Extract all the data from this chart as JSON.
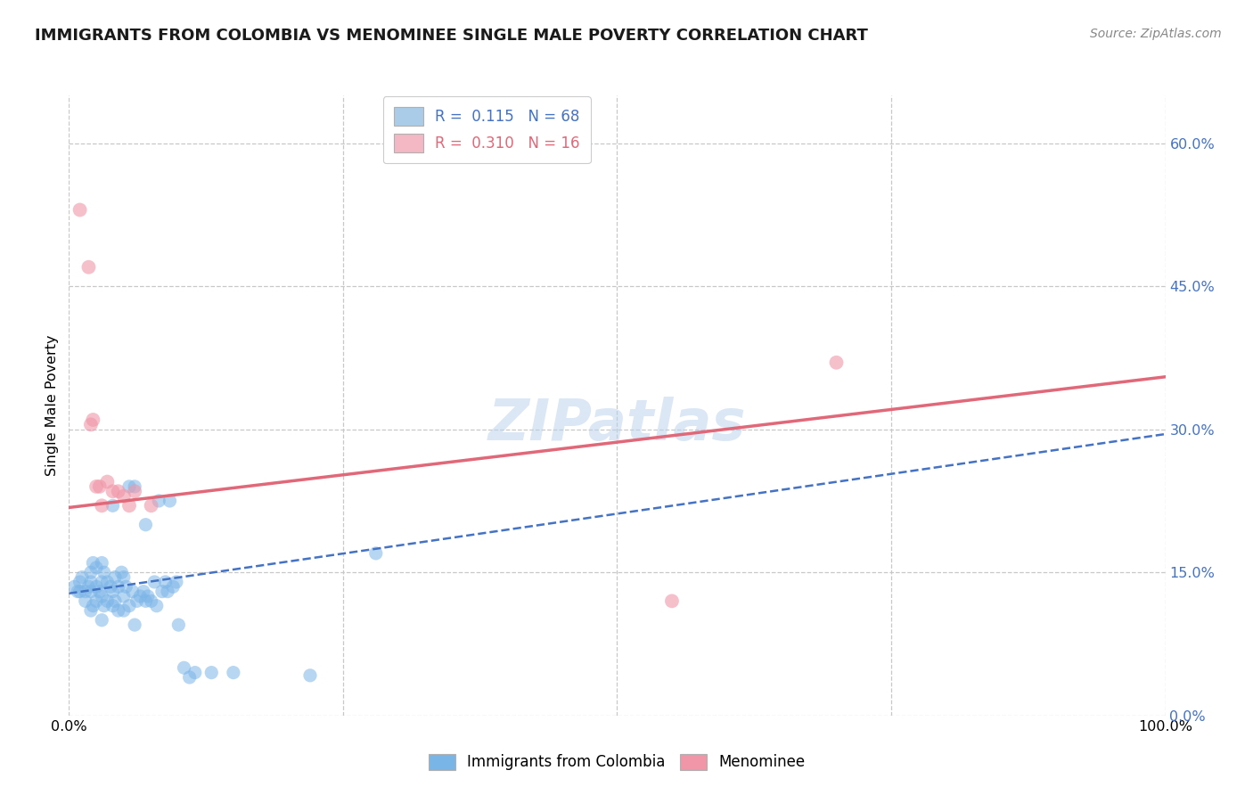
{
  "title": "IMMIGRANTS FROM COLOMBIA VS MENOMINEE SINGLE MALE POVERTY CORRELATION CHART",
  "source": "Source: ZipAtlas.com",
  "ylabel": "Single Male Poverty",
  "yticks": [
    0.0,
    0.15,
    0.3,
    0.45,
    0.6
  ],
  "ytick_labels": [
    "0.0%",
    "15.0%",
    "30.0%",
    "45.0%",
    "60.0%"
  ],
  "xlim": [
    0.0,
    1.0
  ],
  "ylim": [
    0.0,
    0.65
  ],
  "r_colombia": "0.115",
  "n_colombia": "68",
  "r_menominee": "0.310",
  "n_menominee": "16",
  "colombia_x": [
    0.005,
    0.008,
    0.01,
    0.01,
    0.012,
    0.015,
    0.015,
    0.018,
    0.02,
    0.02,
    0.02,
    0.02,
    0.022,
    0.022,
    0.025,
    0.025,
    0.025,
    0.028,
    0.03,
    0.03,
    0.03,
    0.03,
    0.032,
    0.032,
    0.035,
    0.035,
    0.038,
    0.04,
    0.04,
    0.04,
    0.042,
    0.042,
    0.045,
    0.045,
    0.048,
    0.05,
    0.05,
    0.05,
    0.052,
    0.055,
    0.055,
    0.058,
    0.06,
    0.06,
    0.062,
    0.065,
    0.068,
    0.07,
    0.07,
    0.072,
    0.075,
    0.078,
    0.08,
    0.082,
    0.085,
    0.088,
    0.09,
    0.092,
    0.095,
    0.098,
    0.1,
    0.105,
    0.11,
    0.115,
    0.13,
    0.15,
    0.22,
    0.28
  ],
  "colombia_y": [
    0.135,
    0.13,
    0.14,
    0.13,
    0.145,
    0.12,
    0.13,
    0.135,
    0.11,
    0.13,
    0.14,
    0.15,
    0.115,
    0.16,
    0.12,
    0.135,
    0.155,
    0.13,
    0.1,
    0.125,
    0.14,
    0.16,
    0.115,
    0.15,
    0.12,
    0.14,
    0.135,
    0.115,
    0.13,
    0.22,
    0.12,
    0.145,
    0.11,
    0.135,
    0.15,
    0.11,
    0.125,
    0.145,
    0.135,
    0.115,
    0.24,
    0.13,
    0.095,
    0.24,
    0.12,
    0.125,
    0.13,
    0.12,
    0.2,
    0.125,
    0.12,
    0.14,
    0.115,
    0.225,
    0.13,
    0.14,
    0.13,
    0.225,
    0.135,
    0.14,
    0.095,
    0.05,
    0.04,
    0.045,
    0.045,
    0.045,
    0.042,
    0.17
  ],
  "menominee_x": [
    0.01,
    0.018,
    0.022,
    0.028,
    0.035,
    0.045,
    0.055,
    0.06,
    0.075,
    0.02,
    0.025,
    0.03,
    0.04,
    0.05,
    0.55,
    0.7
  ],
  "menominee_y": [
    0.53,
    0.47,
    0.31,
    0.24,
    0.245,
    0.235,
    0.22,
    0.235,
    0.22,
    0.305,
    0.24,
    0.22,
    0.235,
    0.23,
    0.12,
    0.37
  ],
  "colombia_trend_x": [
    0.0,
    1.0
  ],
  "colombia_trend_y": [
    0.128,
    0.295
  ],
  "menominee_trend_x": [
    0.0,
    1.0
  ],
  "menominee_trend_y": [
    0.218,
    0.355
  ],
  "colombia_dot_color": "#7ab5e8",
  "menominee_dot_color": "#f096a8",
  "colombia_trend_color": "#4472c4",
  "menominee_trend_color": "#e06878",
  "colombia_legend_color": "#aacce8",
  "menominee_legend_color": "#f4b8c4",
  "watermark": "ZIPatlas",
  "bg_color": "#ffffff",
  "grid_color": "#c8c8c8",
  "ytick_color": "#4472c4"
}
